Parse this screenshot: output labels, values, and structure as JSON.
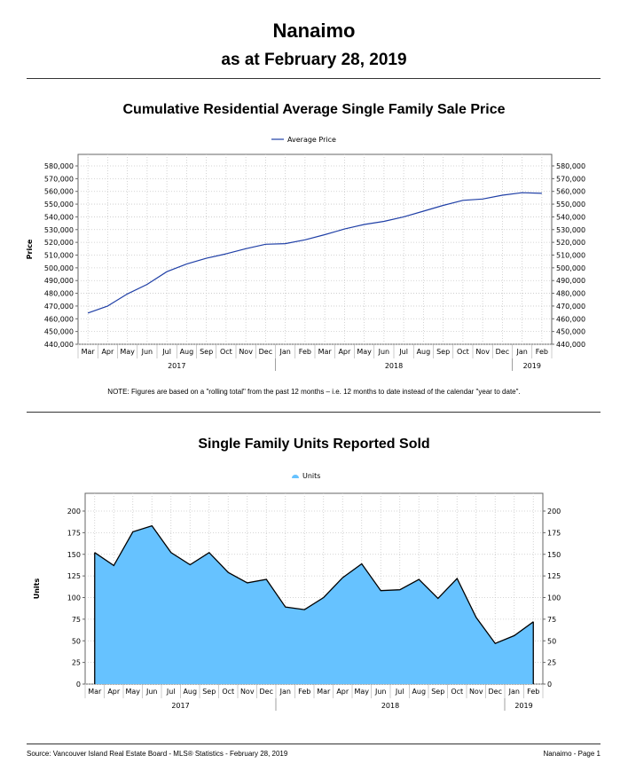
{
  "header": {
    "title": "Nanaimo",
    "subtitle": "as at February 28, 2019"
  },
  "note": "NOTE:  Figures are based on a \"rolling total\" from the past 12 months – i.e. 12 months to date instead of the calendar \"year to date\".",
  "footer": {
    "source": "Source: Vancouver Island Real Estate Board - MLS® Statistics - February 28, 2019",
    "page": "Nanaimo - Page 1"
  },
  "chart_data": [
    {
      "type": "line",
      "title": "Cumulative Residential Average Single Family Sale Price",
      "ylabel": "Price",
      "xlabel": "",
      "ylim": [
        440000,
        580000
      ],
      "yticks": [
        "440,000",
        "450,000",
        "460,000",
        "470,000",
        "480,000",
        "490,000",
        "500,000",
        "510,000",
        "520,000",
        "530,000",
        "540,000",
        "550,000",
        "560,000",
        "570,000",
        "580,000"
      ],
      "categories": [
        "Mar",
        "Apr",
        "May",
        "Jun",
        "Jul",
        "Aug",
        "Sep",
        "Oct",
        "Nov",
        "Dec",
        "Jan",
        "Feb",
        "Mar",
        "Apr",
        "May",
        "Jun",
        "Jul",
        "Aug",
        "Sep",
        "Oct",
        "Nov",
        "Dec",
        "Jan",
        "Feb"
      ],
      "year_labels": [
        {
          "label": "2017",
          "start": 0,
          "end": 9
        },
        {
          "label": "2018",
          "start": 10,
          "end": 21
        },
        {
          "label": "2019",
          "start": 22,
          "end": 23
        }
      ],
      "legend": "top-center",
      "grid": true,
      "color": "#1f3fa6",
      "series": [
        {
          "name": "Average Price",
          "values": [
            464500,
            470000,
            479500,
            487000,
            497000,
            503000,
            507500,
            511000,
            515000,
            518500,
            519000,
            522000,
            526000,
            530500,
            534000,
            536500,
            540000,
            544500,
            549000,
            553000,
            554000,
            557000,
            559000,
            558500
          ]
        }
      ]
    },
    {
      "type": "area",
      "title": "Single Family Units Reported Sold",
      "ylabel": "Units",
      "xlabel": "",
      "ylim": [
        0,
        200
      ],
      "yticks": [
        "0",
        "25",
        "50",
        "75",
        "100",
        "125",
        "150",
        "175",
        "200"
      ],
      "categories": [
        "Mar",
        "Apr",
        "May",
        "Jun",
        "Jul",
        "Aug",
        "Sep",
        "Oct",
        "Nov",
        "Dec",
        "Jan",
        "Feb",
        "Mar",
        "Apr",
        "May",
        "Jun",
        "Jul",
        "Aug",
        "Sep",
        "Oct",
        "Nov",
        "Dec",
        "Jan",
        "Feb"
      ],
      "year_labels": [
        {
          "label": "2017",
          "start": 0,
          "end": 9
        },
        {
          "label": "2018",
          "start": 10,
          "end": 21
        },
        {
          "label": "2019",
          "start": 22,
          "end": 23
        }
      ],
      "legend": "top-center",
      "grid": true,
      "color": "#66c2ff",
      "series": [
        {
          "name": "Units",
          "values": [
            152,
            137,
            176,
            183,
            152,
            138,
            152,
            129,
            117,
            121,
            89,
            86,
            100,
            123,
            139,
            108,
            109,
            121,
            99,
            122,
            77,
            47,
            56,
            72
          ]
        }
      ]
    }
  ]
}
